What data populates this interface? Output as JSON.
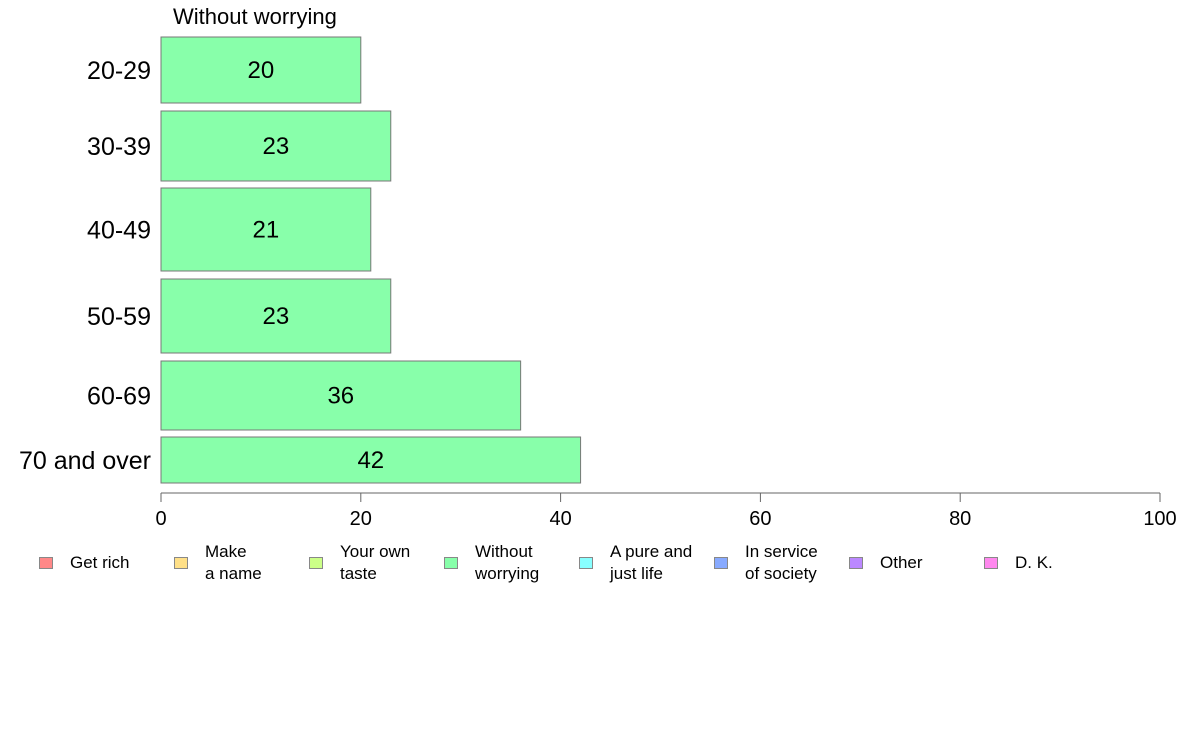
{
  "chart_data": {
    "type": "bar",
    "orientation": "horizontal",
    "title": "Without worrying",
    "categories": [
      "20-29",
      "30-39",
      "40-49",
      "50-59",
      "60-69",
      "70 and over"
    ],
    "values": [
      20,
      23,
      21,
      23,
      36,
      42
    ],
    "data_labels": [
      "20",
      "23",
      "21",
      "23",
      "36",
      "42"
    ],
    "xlim": [
      0,
      100
    ],
    "xticks": [
      0,
      20,
      40,
      60,
      80,
      100
    ],
    "bar_color": "#88ffaa",
    "grid": false,
    "legend_position": "bottom",
    "legend": [
      {
        "label": "Get rich",
        "color": "#ff8888"
      },
      {
        "label": "Make\na name",
        "color": "#ffe088"
      },
      {
        "label": "Your own\ntaste",
        "color": "#ccff88"
      },
      {
        "label": "Without\nworrying",
        "color": "#88ffaa"
      },
      {
        "label": "A pure and\njust life",
        "color": "#88ffff"
      },
      {
        "label": "In service\nof society",
        "color": "#88aaff"
      },
      {
        "label": "Other",
        "color": "#bb88ff"
      },
      {
        "label": "D. K.",
        "color": "#ff88ee"
      }
    ]
  }
}
